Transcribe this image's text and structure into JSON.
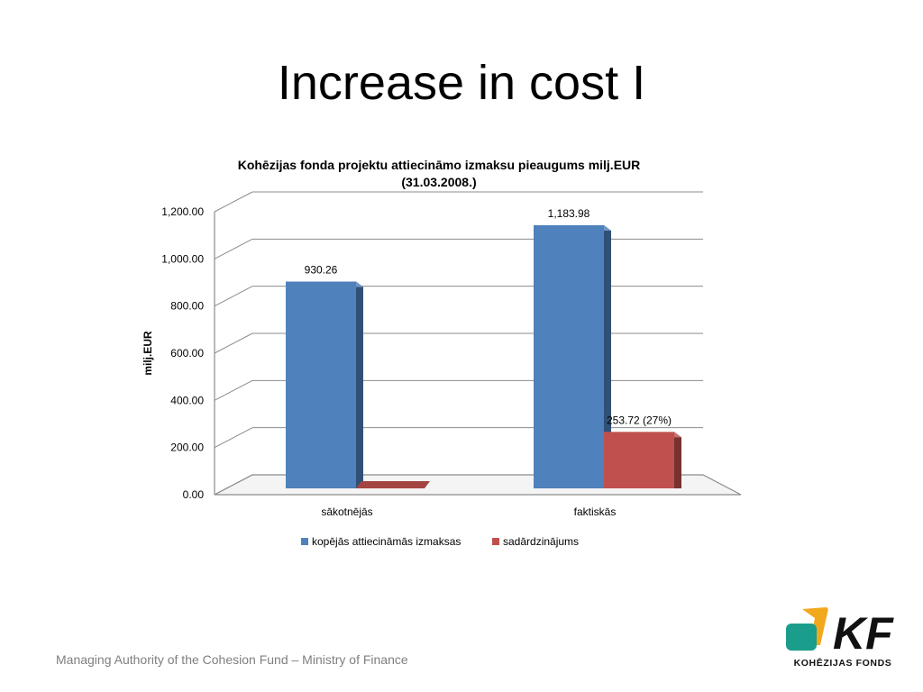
{
  "slide": {
    "title": "Increase in cost I",
    "footer": "Managing Authority of the Cohesion Fund – Ministry of Finance"
  },
  "logo": {
    "text": "KF",
    "subtitle": "KOHĒZIJAS FONDS",
    "colors": {
      "teal": "#1a9d8a",
      "yellow": "#f2a81d"
    }
  },
  "chart_data": {
    "type": "bar",
    "title": "Kohēzijas fonda projektu attiecināmo izmaksu pieaugums milj.EUR",
    "subtitle": "(31.03.2008.)",
    "ylabel": "milj.EUR",
    "xlabel": "",
    "categories": [
      "sākotnējās",
      "faktiskās"
    ],
    "ylim": [
      0,
      1200
    ],
    "yticks": [
      "0.00",
      "200.00",
      "400.00",
      "600.00",
      "800.00",
      "1,000.00",
      "1,200.00"
    ],
    "series": [
      {
        "name": "kopējās attiecināmās izmaksas",
        "values": [
          930.26,
          1183.98
        ],
        "labels": [
          "930.26",
          "1,183.98"
        ],
        "color": "#4f81bd"
      },
      {
        "name": "sadārdzinājums",
        "values": [
          0,
          253.72
        ],
        "labels": [
          "",
          "253.72 (27%)"
        ],
        "color": "#c0504d"
      }
    ],
    "legend_position": "bottom",
    "grid": true,
    "style": "3d-clustered"
  }
}
